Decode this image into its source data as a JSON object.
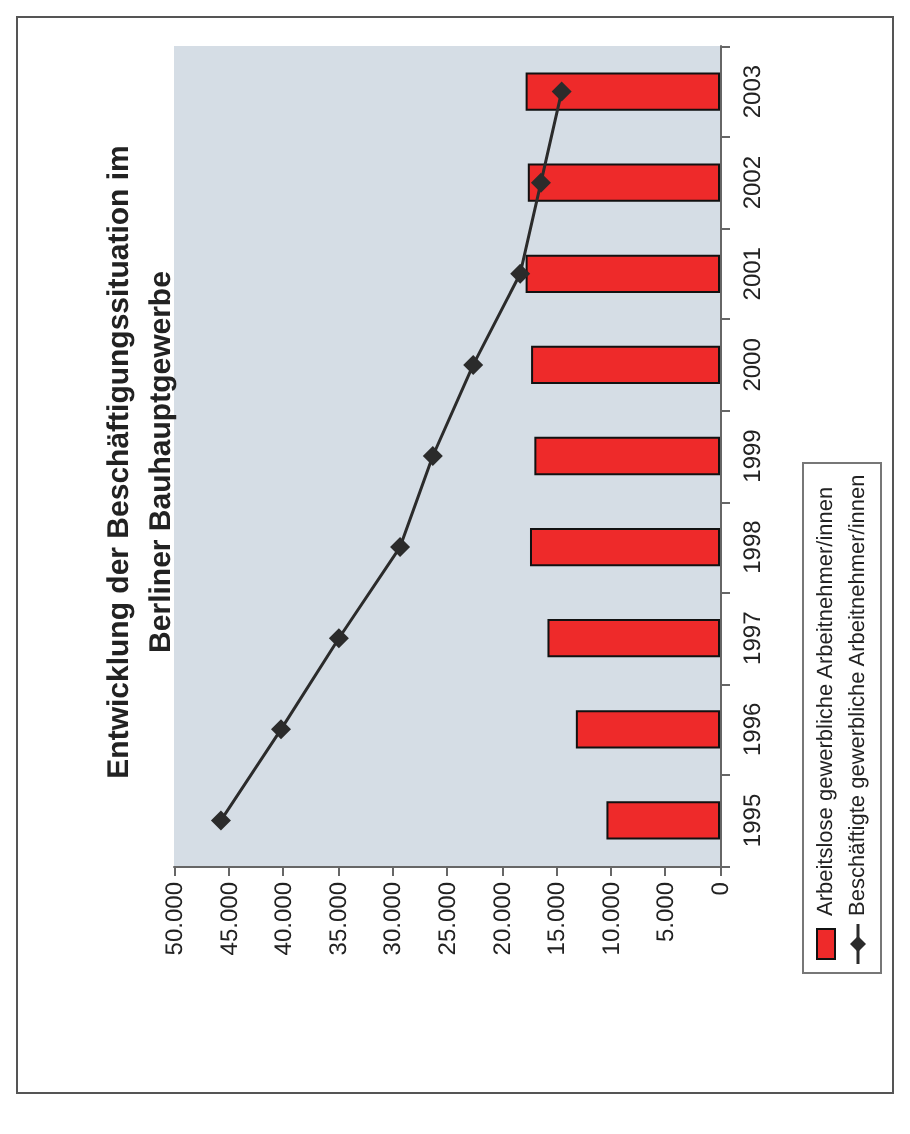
{
  "chart_data": {
    "type": "bar",
    "orientation": "horizontal",
    "title": "Entwicklung der Beschäftigungssituation im\nBerliner Bauhauptgewerbe",
    "categories": [
      "2003",
      "2002",
      "2001",
      "2000",
      "1999",
      "1998",
      "1997",
      "1996",
      "1995"
    ],
    "series": [
      {
        "name": "Arbeitslose gewerbliche Arbeitnehmer/innen",
        "color": "#ee2a2a",
        "values": [
          17800,
          17600,
          17800,
          17300,
          17000,
          17400,
          15800,
          13200,
          10400
        ]
      },
      {
        "name": "Beschäftigte gewerbliche Arbeitnehmer/innen",
        "type": "line",
        "color": "#2b2b2b",
        "marker": "diamond",
        "values": [
          14500,
          16400,
          18300,
          22600,
          26300,
          29300,
          34900,
          40200,
          45700
        ]
      }
    ],
    "xlim": [
      50000,
      0
    ],
    "xticks": [
      {
        "value": 0,
        "label": "0"
      },
      {
        "value": 5000,
        "label": "5.000"
      },
      {
        "value": 10000,
        "label": "10.000"
      },
      {
        "value": 15000,
        "label": "15.000"
      },
      {
        "value": 20000,
        "label": "20.000"
      },
      {
        "value": 25000,
        "label": "25.000"
      },
      {
        "value": 30000,
        "label": "30.000"
      },
      {
        "value": 35000,
        "label": "35.000"
      },
      {
        "value": 40000,
        "label": "40.000"
      },
      {
        "value": 45000,
        "label": "45.000"
      },
      {
        "value": 50000,
        "label": "50.000"
      }
    ],
    "grid": false,
    "legend": "bottom right"
  }
}
